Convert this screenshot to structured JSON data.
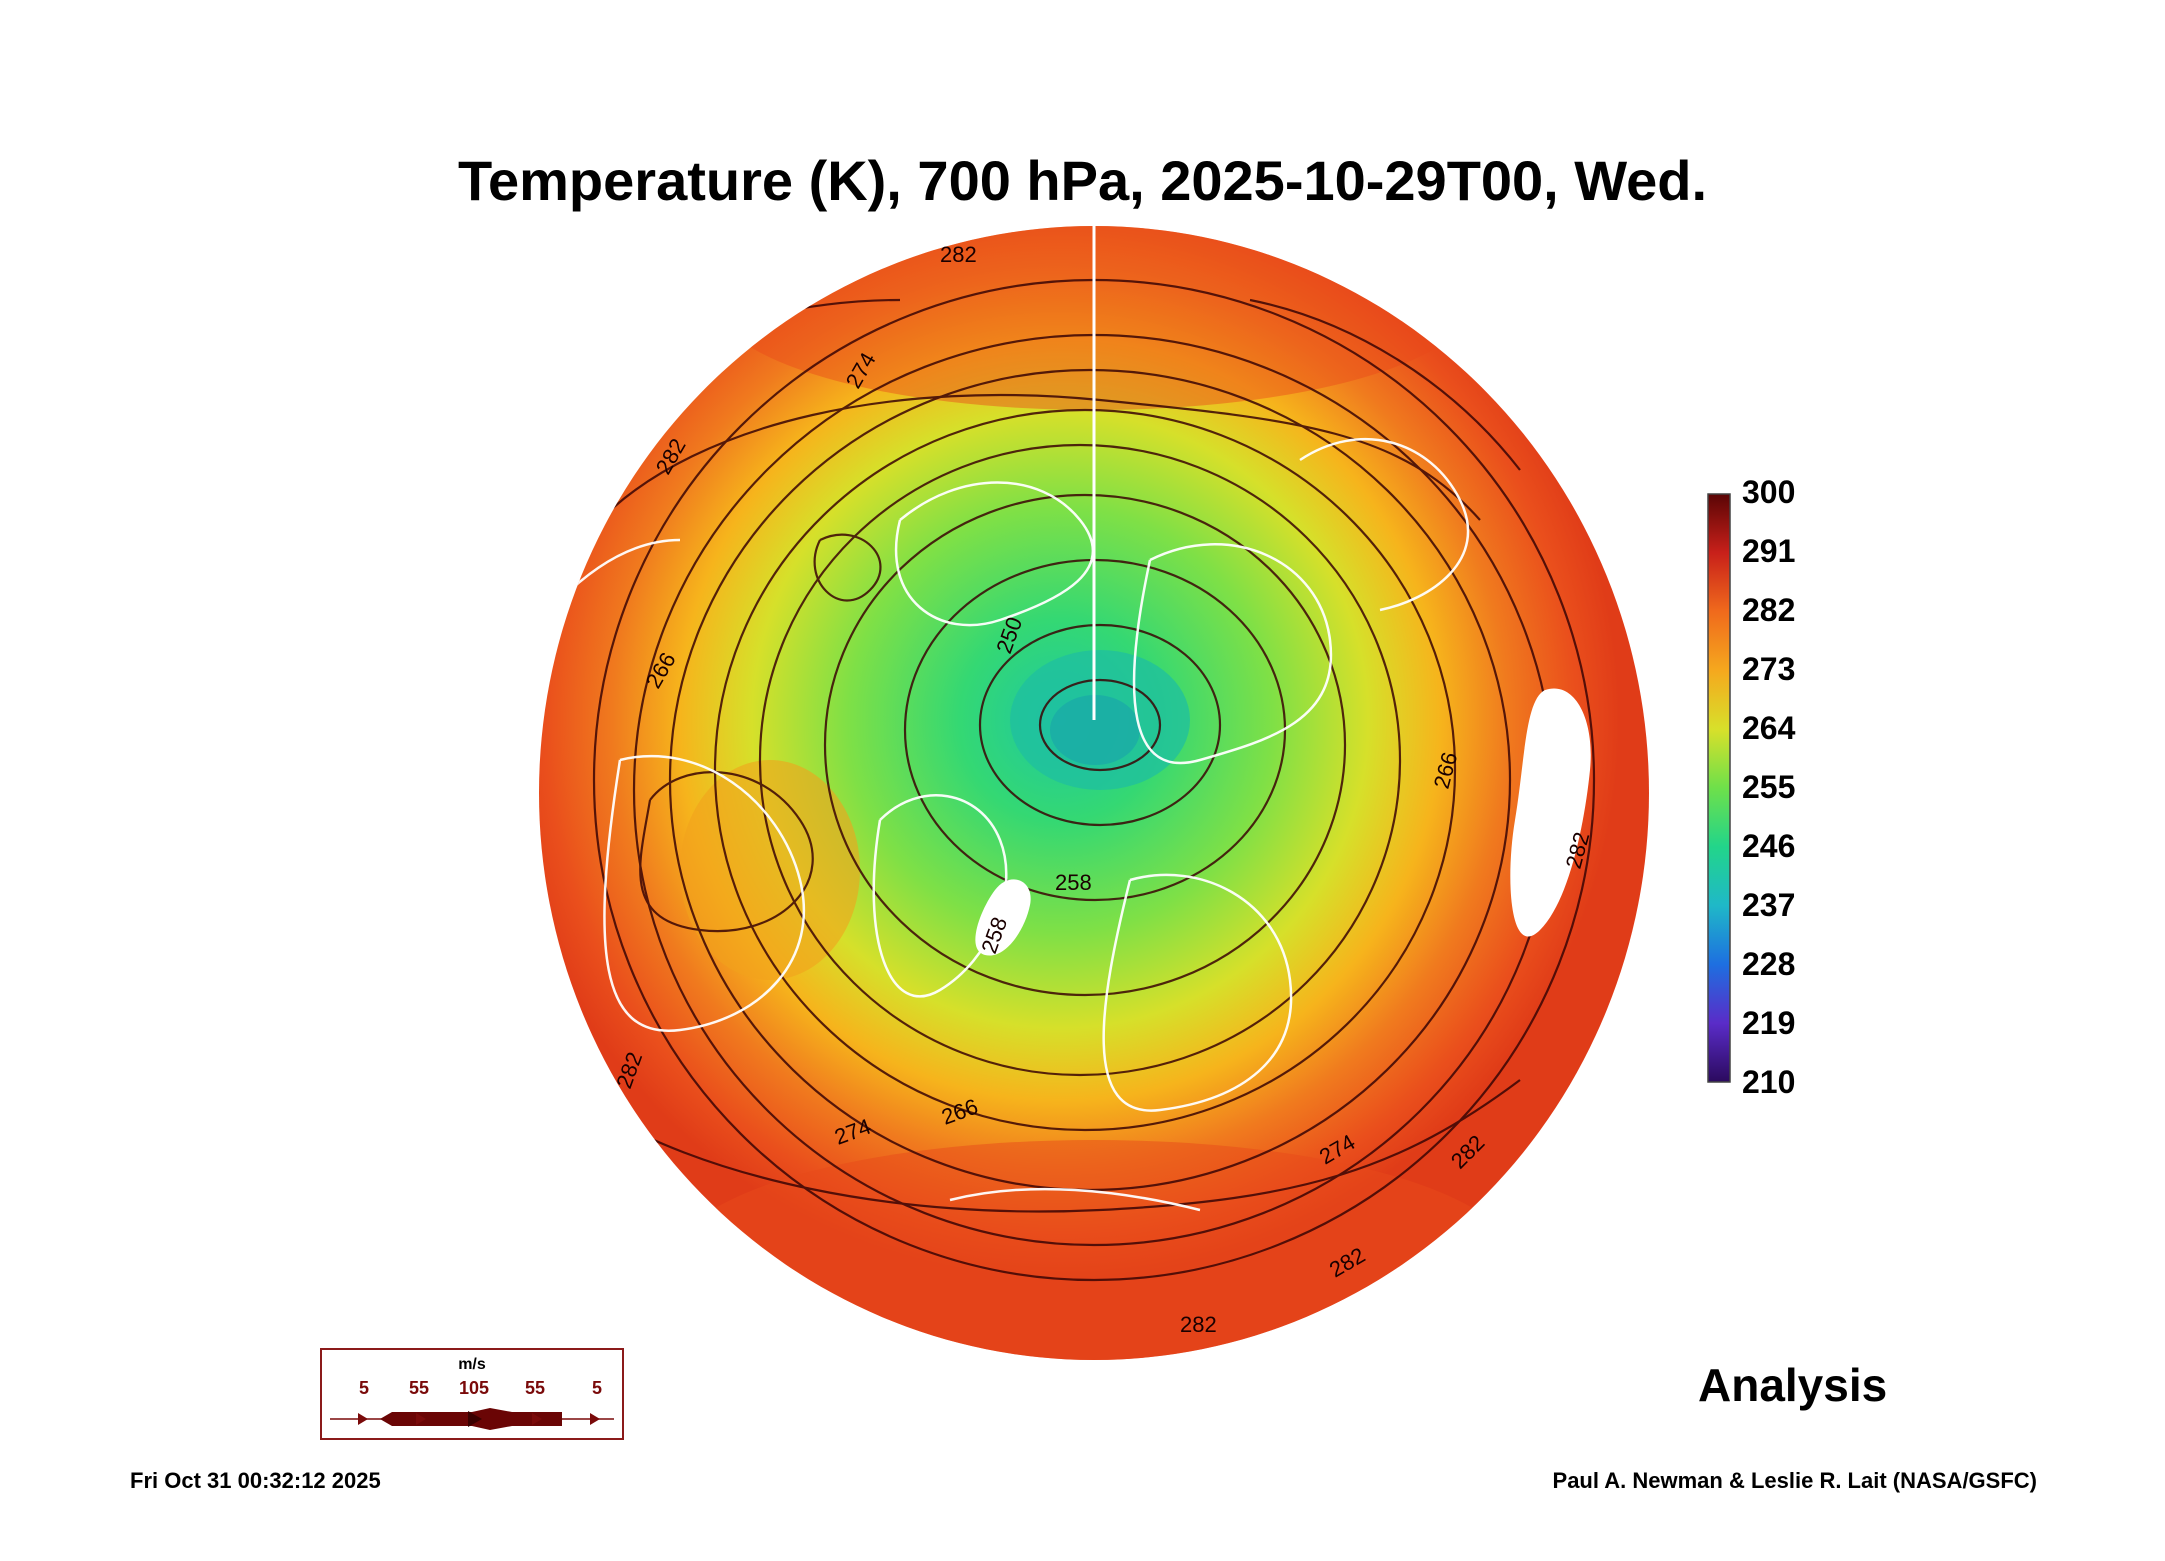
{
  "title": "Temperature (K), 700 hPa, 2025-10-29T00, Wed.",
  "colorbar": {
    "ticks": [
      "300",
      "291",
      "282",
      "273",
      "264",
      "255",
      "246",
      "237",
      "228",
      "219",
      "210"
    ],
    "colors": [
      "#2b0a5e",
      "#4b2fc0",
      "#1e6fe0",
      "#1fb8c8",
      "#22d58a",
      "#6ee04a",
      "#c8e22c",
      "#f5b81e",
      "#f06a1c",
      "#d9301a",
      "#8a1010",
      "#5a0505"
    ]
  },
  "contour_labels": [
    "282",
    "282",
    "282",
    "282",
    "282",
    "282",
    "282",
    "274",
    "274",
    "274",
    "266",
    "266",
    "266",
    "258",
    "258",
    "250"
  ],
  "wind_legend": {
    "unit": "m/s",
    "speeds": [
      "5",
      "55",
      "105",
      "55",
      "5"
    ]
  },
  "analysis_label": "Analysis",
  "timestamp": "Fri Oct 31 00:32:12 2025",
  "credit": "Paul A. Newman & Leslie R. Lait (NASA/GSFC)"
}
